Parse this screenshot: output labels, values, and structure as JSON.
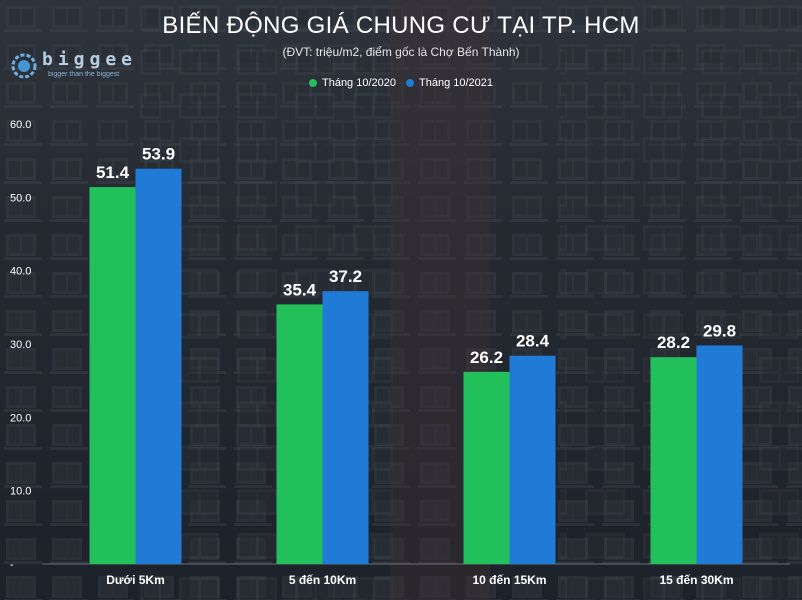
{
  "chart_data": {
    "type": "bar",
    "title": "BIẾN ĐỘNG GIÁ CHUNG CƯ TẠI TP. HCM",
    "subtitle": "(ĐVT: triệu/m2, điểm gốc là Chợ Bến Thành)",
    "categories": [
      "Dưới 5Km",
      "5 đến 10Km",
      "10 đến 15Km",
      "15 đến 30Km"
    ],
    "series": [
      {
        "name": "Tháng 10/2020",
        "values": [
          51.4,
          35.4,
          26.2,
          28.2
        ],
        "color": "#22c05a"
      },
      {
        "name": "Tháng 10/2021",
        "values": [
          53.9,
          37.2,
          28.4,
          29.8
        ],
        "color": "#1f7bd6"
      }
    ],
    "y_ticks": [
      "-",
      "10.0",
      "20.0",
      "30.0",
      "40.0",
      "50.0",
      "60.0"
    ],
    "ylim": [
      0,
      60
    ],
    "grid": false,
    "legend_position": "top-center",
    "xlabel": "",
    "ylabel": ""
  },
  "logo": {
    "word": "biggee",
    "tagline": "bigger than the biggest",
    "icon": "gear-globe-icon"
  }
}
